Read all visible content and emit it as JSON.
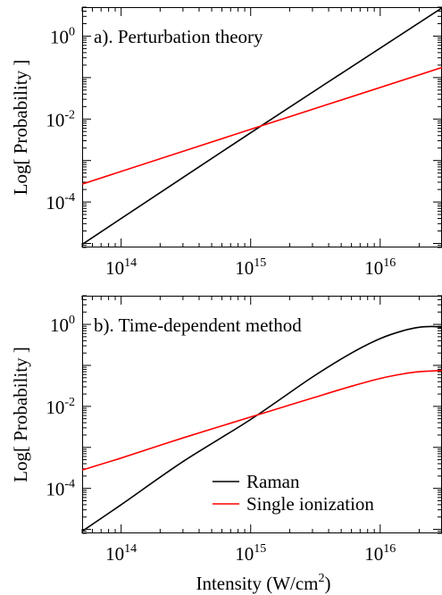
{
  "figure": {
    "xlabel_base": "Intensity (W/cm",
    "xlabel_sup": "2",
    "xlabel_end": ")"
  },
  "chart_data": [
    {
      "type": "line",
      "panel_label": "a). Perturbation theory",
      "ylabel": "Log[ Probability ]",
      "x_scale": "log",
      "y_scale": "log",
      "xlim": [
        50000000000000.0,
        3e+16
      ],
      "ylim": [
        8e-06,
        5
      ],
      "xticks": [
        {
          "base": "10",
          "exp": "14",
          "value": 100000000000000.0
        },
        {
          "base": "10",
          "exp": "15",
          "value": 1000000000000000.0
        },
        {
          "base": "10",
          "exp": "16",
          "value": 1e+16
        }
      ],
      "yticks": [
        {
          "base": "10",
          "exp": "0",
          "value": 1
        },
        {
          "base": "10",
          "exp": "-2",
          "value": 0.01
        },
        {
          "base": "10",
          "exp": "-4",
          "value": 0.0001
        }
      ],
      "grid": false,
      "series": [
        {
          "name": "Raman",
          "color": "#000000",
          "x": [
            50000000000000.0,
            1200000000000000.0,
            3e+16
          ],
          "y": [
            9.5e-06,
            0.0068,
            4.8
          ]
        },
        {
          "name": "Single ionization",
          "color": "#ff0000",
          "x": [
            50000000000000.0,
            1200000000000000.0,
            3e+16
          ],
          "y": [
            0.00027,
            0.0068,
            0.175
          ]
        }
      ]
    },
    {
      "type": "line",
      "panel_label": "b). Time-dependent method",
      "ylabel": "Log[ Probability ]",
      "x_scale": "log",
      "y_scale": "log",
      "xlim": [
        50000000000000.0,
        3e+16
      ],
      "ylim": [
        8e-06,
        5
      ],
      "xticks": [
        {
          "base": "10",
          "exp": "14",
          "value": 100000000000000.0
        },
        {
          "base": "10",
          "exp": "15",
          "value": 1000000000000000.0
        },
        {
          "base": "10",
          "exp": "16",
          "value": 1e+16
        }
      ],
      "yticks": [
        {
          "base": "10",
          "exp": "0",
          "value": 1
        },
        {
          "base": "10",
          "exp": "-2",
          "value": 0.01
        },
        {
          "base": "10",
          "exp": "-4",
          "value": 0.0001
        }
      ],
      "grid": false,
      "legend_position": "bottom-right",
      "series": [
        {
          "name": "Raman",
          "color": "#000000",
          "x": [
            50000000000000.0,
            100000000000000.0,
            300000000000000.0,
            1000000000000000.0,
            3000000000000000.0,
            6000000000000000.0,
            1e+16,
            1.5e+16,
            2e+16,
            2.5e+16,
            3e+16
          ],
          "y": [
            9e-06,
            4e-05,
            0.00045,
            0.0048,
            0.052,
            0.2,
            0.45,
            0.7,
            0.85,
            0.89,
            0.85
          ]
        },
        {
          "name": "Single ionization",
          "color": "#ff0000",
          "x": [
            50000000000000.0,
            100000000000000.0,
            300000000000000.0,
            1000000000000000.0,
            3000000000000000.0,
            6000000000000000.0,
            1e+16,
            1.5e+16,
            2e+16,
            3e+16
          ],
          "y": [
            0.00028,
            0.00055,
            0.0017,
            0.0055,
            0.016,
            0.031,
            0.048,
            0.062,
            0.07,
            0.075
          ]
        }
      ]
    }
  ]
}
